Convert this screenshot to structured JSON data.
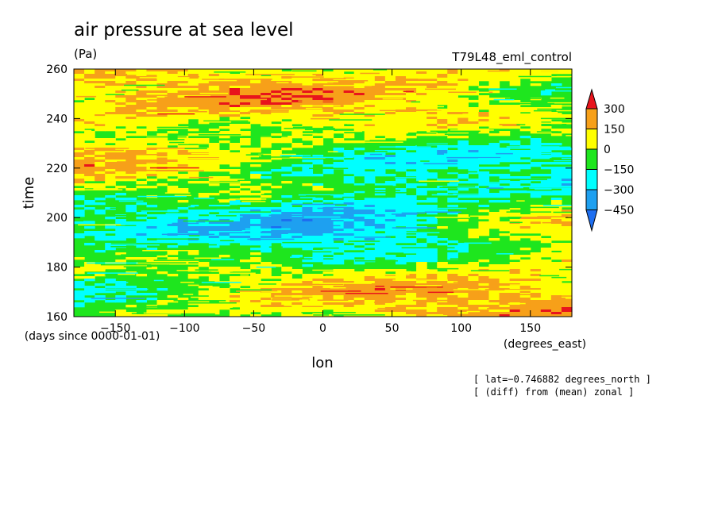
{
  "chart_data": {
    "type": "heatmap",
    "title": "air pressure at sea level",
    "units": "(Pa)",
    "experiment": "T79L48_eml_control",
    "xlabel": "lon",
    "xunits": "(degrees_east)",
    "ylabel": "time",
    "yunits": "(days since 0000-01-01)",
    "xlim": [
      -180,
      180
    ],
    "ylim": [
      160,
      260
    ],
    "x_ticks": [
      -150,
      -100,
      -50,
      0,
      50,
      100,
      150
    ],
    "y_ticks": [
      160,
      180,
      200,
      220,
      240,
      260
    ],
    "colorbar": {
      "levels": [
        300,
        150,
        0,
        -150,
        -300,
        -450
      ],
      "level_labels": [
        "300",
        "150",
        "0",
        "−150",
        "−300",
        "−450"
      ],
      "colors": [
        "#e8141c",
        "#f7a019",
        "#ffff00",
        "#1ee61e",
        "#00ffff",
        "#1ea0f0",
        "#1e6ef0"
      ]
    },
    "annotations": [
      "[ lat=−0.746882 degrees_north ]",
      "[ (diff) from (mean) zonal ]"
    ]
  }
}
